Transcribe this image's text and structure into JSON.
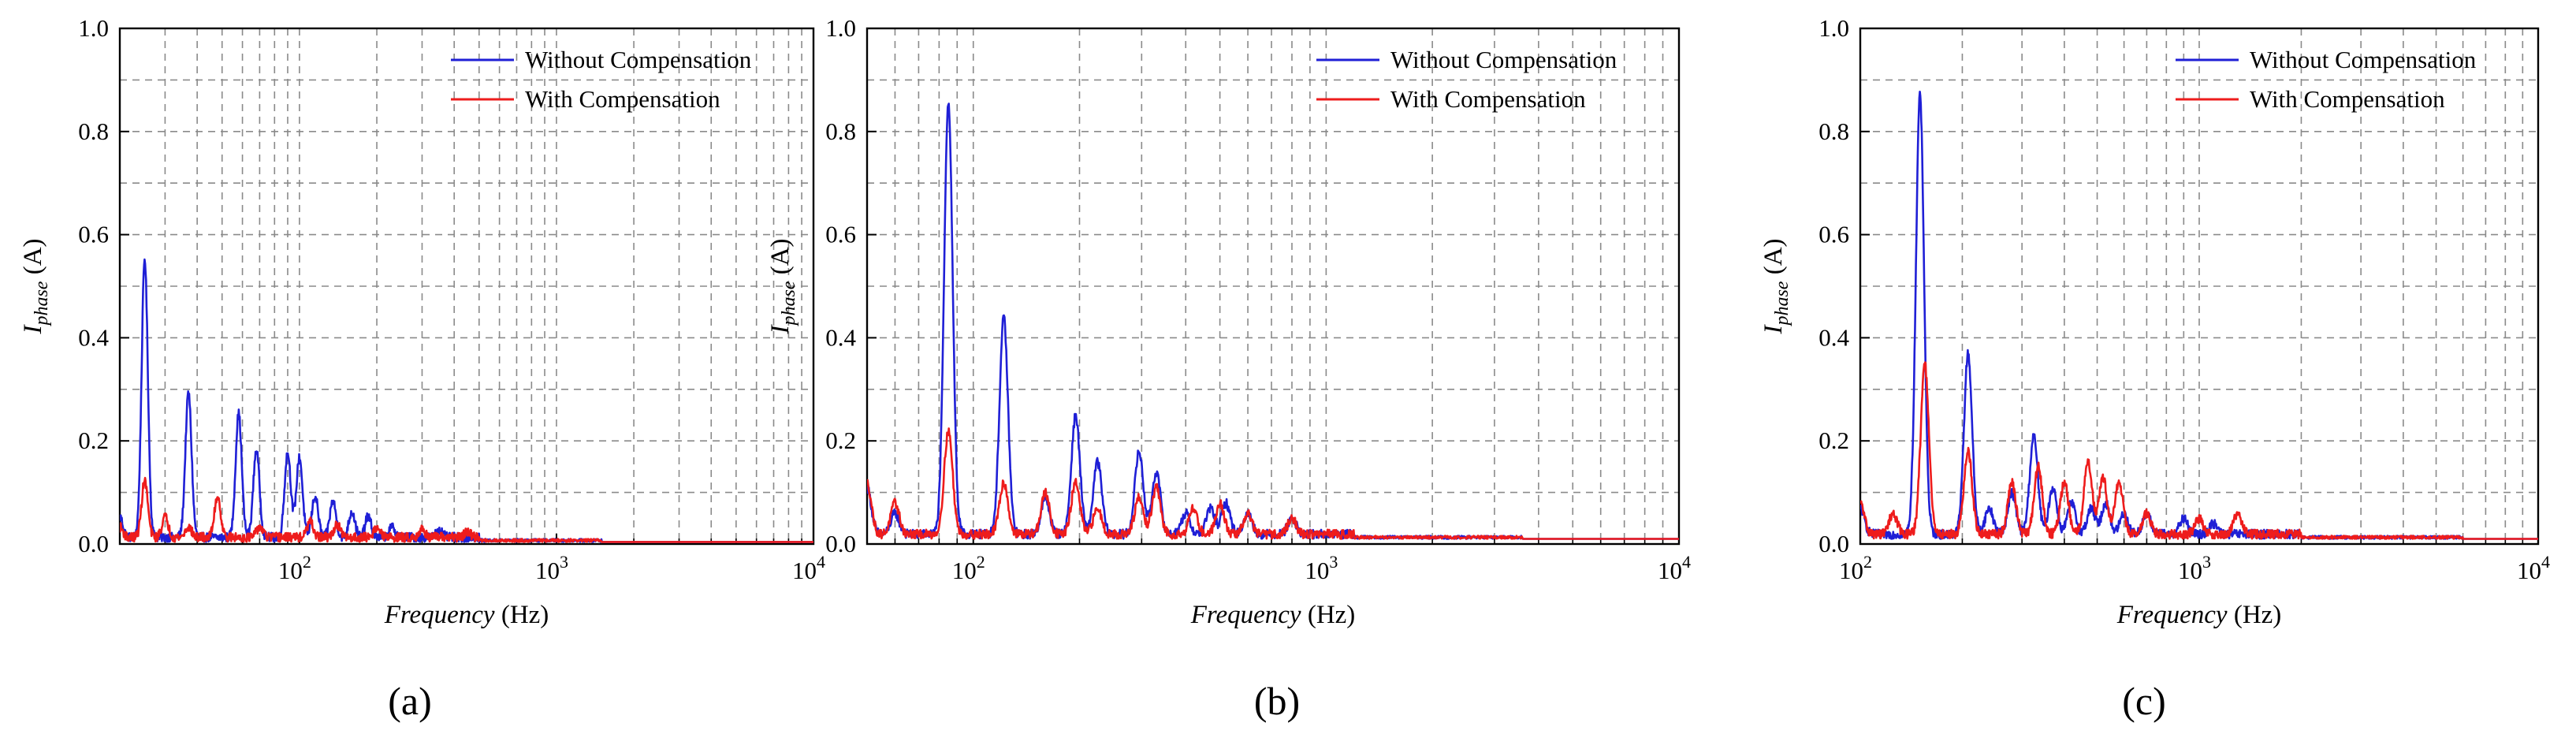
{
  "figure": {
    "legend": [
      {
        "label": "Without Compensation",
        "color": "#1f1fd6"
      },
      {
        "label": "With Compensation",
        "color": "#ee1c1c"
      }
    ]
  },
  "chart_data": [
    {
      "type": "line",
      "panel_caption": "(a)",
      "xscale": "log",
      "xlim": [
        20,
        10000
      ],
      "ylim": [
        0,
        1.0
      ],
      "xlabel_italic": "Frequency",
      "xlabel_unit": " (Hz)",
      "ylabel_main": "I",
      "ylabel_sub": "phase",
      "ylabel_unit": " (A)",
      "xticks": [
        {
          "value": 100,
          "exp": "2"
        },
        {
          "value": 1000,
          "exp": "3"
        },
        {
          "value": 10000,
          "exp": "4"
        }
      ],
      "yticks": [
        "0.0",
        "0.2",
        "0.4",
        "0.6",
        "0.8",
        "1.0"
      ],
      "legend_position": "top-right",
      "noise_end": 500,
      "series": [
        {
          "name": "Without Compensation",
          "color": "#1f1fd6",
          "base": 0.004,
          "peaks": [
            [
              20,
              0.04
            ],
            [
              25,
              0.54
            ],
            [
              37,
              0.28
            ],
            [
              58,
              0.24
            ],
            [
              68,
              0.17
            ],
            [
              90,
              0.165
            ],
            [
              100,
              0.155
            ],
            [
              115,
              0.08
            ],
            [
              135,
              0.07
            ],
            [
              160,
              0.05
            ],
            [
              185,
              0.04
            ],
            [
              230,
              0.02
            ],
            [
              350,
              0.015
            ]
          ]
        },
        {
          "name": "With Compensation",
          "color": "#ee1c1c",
          "base": 0.004,
          "peaks": [
            [
              20,
              0.02
            ],
            [
              25,
              0.11
            ],
            [
              30,
              0.04
            ],
            [
              37,
              0.02
            ],
            [
              48,
              0.08
            ],
            [
              70,
              0.02
            ],
            [
              110,
              0.03
            ],
            [
              140,
              0.025
            ],
            [
              200,
              0.02
            ],
            [
              300,
              0.015
            ],
            [
              450,
              0.01
            ]
          ]
        }
      ]
    },
    {
      "type": "line",
      "panel_caption": "(b)",
      "xscale": "log",
      "xlim": [
        50,
        10000
      ],
      "ylim": [
        0,
        1.0
      ],
      "xlabel_italic": "Frequency",
      "xlabel_unit": " (Hz)",
      "ylabel_main": "I",
      "ylabel_sub": "phase",
      "ylabel_unit": " (A)",
      "xticks": [
        {
          "value": 100,
          "exp": "2"
        },
        {
          "value": 1000,
          "exp": "3"
        },
        {
          "value": 10000,
          "exp": "4"
        }
      ],
      "yticks": [
        "0.0",
        "0.2",
        "0.4",
        "0.6",
        "0.8",
        "1.0"
      ],
      "legend_position": "top-right",
      "noise_end": 1200,
      "series": [
        {
          "name": "Without Compensation",
          "color": "#1f1fd6",
          "base": 0.01,
          "peaks": [
            [
              50,
              0.09
            ],
            [
              60,
              0.04
            ],
            [
              85,
              0.84
            ],
            [
              122,
              0.42
            ],
            [
              160,
              0.07
            ],
            [
              195,
              0.23
            ],
            [
              225,
              0.14
            ],
            [
              295,
              0.16
            ],
            [
              330,
              0.12
            ],
            [
              400,
              0.04
            ],
            [
              470,
              0.05
            ],
            [
              520,
              0.06
            ],
            [
              600,
              0.04
            ],
            [
              800,
              0.03
            ]
          ]
        },
        {
          "name": "With Compensation",
          "color": "#ee1c1c",
          "base": 0.01,
          "peaks": [
            [
              50,
              0.1
            ],
            [
              60,
              0.06
            ],
            [
              85,
              0.2
            ],
            [
              122,
              0.1
            ],
            [
              160,
              0.08
            ],
            [
              195,
              0.1
            ],
            [
              225,
              0.05
            ],
            [
              295,
              0.07
            ],
            [
              330,
              0.09
            ],
            [
              420,
              0.05
            ],
            [
              500,
              0.06
            ],
            [
              600,
              0.04
            ],
            [
              800,
              0.03
            ]
          ]
        }
      ]
    },
    {
      "type": "line",
      "panel_caption": "(c)",
      "xscale": "log",
      "xlim": [
        100,
        10000
      ],
      "ylim": [
        0,
        1.0
      ],
      "xlabel_italic": "Frequency",
      "xlabel_unit": " (Hz)",
      "ylabel_main": "I",
      "ylabel_sub": "phase",
      "ylabel_unit": " (A)",
      "xticks": [
        {
          "value": 100,
          "exp": "2"
        },
        {
          "value": 1000,
          "exp": "3"
        },
        {
          "value": 10000,
          "exp": "4"
        }
      ],
      "yticks": [
        "0.0",
        "0.2",
        "0.4",
        "0.6",
        "0.8",
        "1.0"
      ],
      "legend_position": "top-right",
      "noise_end": 2000,
      "series": [
        {
          "name": "Without Compensation",
          "color": "#1f1fd6",
          "base": 0.01,
          "peaks": [
            [
              100,
              0.05
            ],
            [
              150,
              0.85
            ],
            [
              208,
              0.35
            ],
            [
              240,
              0.05
            ],
            [
              280,
              0.08
            ],
            [
              325,
              0.19
            ],
            [
              370,
              0.09
            ],
            [
              420,
              0.06
            ],
            [
              480,
              0.05
            ],
            [
              530,
              0.06
            ],
            [
              600,
              0.04
            ],
            [
              700,
              0.04
            ],
            [
              900,
              0.03
            ],
            [
              1100,
              0.02
            ]
          ]
        },
        {
          "name": "With Compensation",
          "color": "#ee1c1c",
          "base": 0.01,
          "peaks": [
            [
              100,
              0.06
            ],
            [
              125,
              0.04
            ],
            [
              155,
              0.33
            ],
            [
              208,
              0.16
            ],
            [
              280,
              0.1
            ],
            [
              335,
              0.13
            ],
            [
              400,
              0.1
            ],
            [
              470,
              0.14
            ],
            [
              520,
              0.11
            ],
            [
              580,
              0.1
            ],
            [
              700,
              0.04
            ],
            [
              1000,
              0.03
            ],
            [
              1300,
              0.04
            ]
          ]
        }
      ]
    }
  ]
}
